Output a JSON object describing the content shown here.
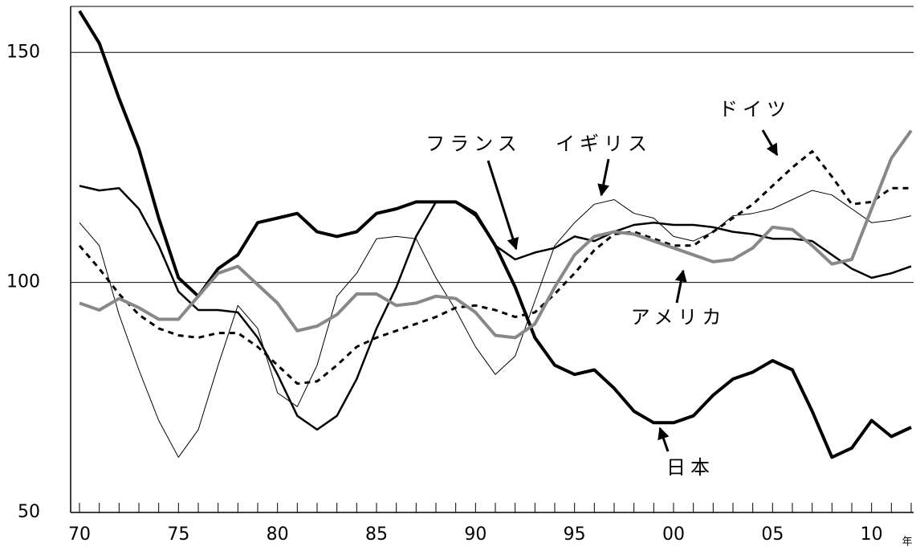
{
  "chart_data": {
    "type": "line",
    "categories": [
      "70",
      null,
      null,
      null,
      null,
      "75",
      null,
      null,
      null,
      null,
      "80",
      null,
      null,
      null,
      null,
      "85",
      null,
      null,
      null,
      null,
      "90",
      null,
      null,
      null,
      null,
      "95",
      null,
      null,
      null,
      null,
      "00",
      null,
      null,
      null,
      null,
      "05",
      null,
      null,
      null,
      null,
      "10",
      null,
      null
    ],
    "x_label": "年",
    "ylim": [
      50,
      160
    ],
    "yticks": [
      50,
      100,
      150
    ],
    "grid": true,
    "series": [
      {
        "name": "日本",
        "color": "#000000",
        "values": [
          159,
          152,
          140,
          129,
          114,
          101,
          97,
          103,
          106,
          113,
          114,
          115,
          111,
          110,
          111,
          115,
          116,
          117.5,
          117.5,
          117.5,
          115,
          108,
          99,
          88,
          82,
          80,
          81,
          77,
          72,
          69.5,
          69.5,
          71,
          75.5,
          79,
          80.5,
          83,
          81,
          72,
          62,
          64,
          70,
          66.5,
          68.5
        ]
      },
      {
        "name": "フランス",
        "color": "#000000",
        "values": [
          121,
          120,
          120.5,
          116,
          108,
          98,
          94,
          94,
          93.5,
          88,
          80,
          71,
          68,
          71,
          79,
          90,
          99,
          110,
          117.5,
          117.5,
          114.5,
          108,
          105,
          106.5,
          107.5,
          110,
          109,
          111,
          112.5,
          113,
          112.5,
          112.5,
          112,
          111,
          110.5,
          109.5,
          109.5,
          109,
          106,
          103,
          101,
          102,
          103.5
        ]
      },
      {
        "name": "イギリス",
        "color": "#000000",
        "values": [
          113,
          108,
          93,
          81,
          70,
          62,
          68,
          82,
          95,
          90,
          76,
          73,
          82,
          97,
          102,
          109.5,
          110,
          109.5,
          101,
          94,
          86,
          80,
          84,
          96,
          108,
          113,
          117,
          118,
          115,
          114,
          110,
          109,
          111,
          114.5,
          115,
          116,
          118,
          120,
          119,
          116,
          113,
          113.5,
          114.5
        ]
      },
      {
        "name": "ドイツ",
        "color": "#000000",
        "values": [
          108,
          103,
          97.5,
          93,
          90,
          88.5,
          88,
          89,
          89,
          86,
          82,
          78,
          78.5,
          82,
          86,
          88,
          89.5,
          91,
          92.5,
          94.5,
          95,
          94,
          92.5,
          93.5,
          97.5,
          102,
          107,
          110.5,
          111,
          109.5,
          108,
          108,
          111,
          114,
          117,
          121,
          125,
          128.5,
          123,
          117,
          117.5,
          120.5,
          120.5
        ]
      },
      {
        "name": "アメリカ",
        "color": "#888888",
        "values": [
          95.5,
          94,
          96.5,
          94.5,
          92,
          92,
          97,
          102,
          103.5,
          99.5,
          95.5,
          89.5,
          90.5,
          93,
          97.5,
          97.5,
          95,
          95.5,
          97,
          96.5,
          93.5,
          88.5,
          88,
          91,
          99,
          106,
          110,
          111,
          110.5,
          109,
          107.5,
          106,
          104.5,
          105,
          107.5,
          112,
          111.5,
          108,
          104,
          105,
          116,
          127,
          133
        ]
      }
    ]
  }
}
